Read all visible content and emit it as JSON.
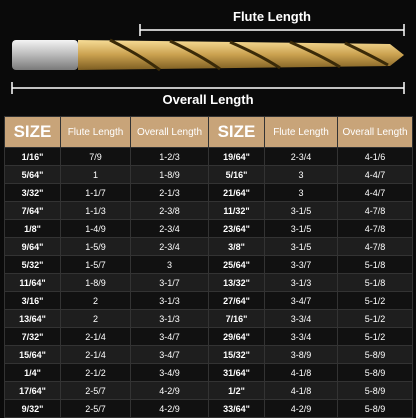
{
  "labels": {
    "flute_length": "Flute Length",
    "overall_length": "Overall Length"
  },
  "table": {
    "header": [
      "SIZE",
      "Flute Length",
      "Overall Length",
      "SIZE",
      "Flute Length",
      "Overall Length"
    ],
    "rows": [
      [
        "1/16\"",
        "7/9",
        "1-2/3",
        "19/64\"",
        "2-3/4",
        "4-1/6"
      ],
      [
        "5/64\"",
        "1",
        "1-8/9",
        "5/16\"",
        "3",
        "4-4/7"
      ],
      [
        "3/32\"",
        "1-1/7",
        "2-1/3",
        "21/64\"",
        "3",
        "4-4/7"
      ],
      [
        "7/64\"",
        "1-1/3",
        "2-3/8",
        "11/32\"",
        "3-1/5",
        "4-7/8"
      ],
      [
        "1/8\"",
        "1-4/9",
        "2-3/4",
        "23/64\"",
        "3-1/5",
        "4-7/8"
      ],
      [
        "9/64\"",
        "1-5/9",
        "2-3/4",
        "3/8\"",
        "3-1/5",
        "4-7/8"
      ],
      [
        "5/32\"",
        "1-5/7",
        "3",
        "25/64\"",
        "3-3/7",
        "5-1/8"
      ],
      [
        "11/64\"",
        "1-8/9",
        "3-1/7",
        "13/32\"",
        "3-1/3",
        "5-1/8"
      ],
      [
        "3/16\"",
        "2",
        "3-1/3",
        "27/64\"",
        "3-4/7",
        "5-1/2"
      ],
      [
        "13/64\"",
        "2",
        "3-1/3",
        "7/16\"",
        "3-3/4",
        "5-1/2"
      ],
      [
        "7/32\"",
        "2-1/4",
        "3-4/7",
        "29/64\"",
        "3-3/4",
        "5-1/2"
      ],
      [
        "15/64\"",
        "2-1/4",
        "3-4/7",
        "15/32\"",
        "3-8/9",
        "5-8/9"
      ],
      [
        "1/4\"",
        "2-1/2",
        "3-4/9",
        "31/64\"",
        "4-1/8",
        "5-8/9"
      ],
      [
        "17/64\"",
        "2-5/7",
        "4-2/9",
        "1/2\"",
        "4-1/8",
        "5-8/9"
      ],
      [
        "9/32\"",
        "2-5/7",
        "4-2/9",
        "33/64\"",
        "4-2/9",
        "5-8/9"
      ]
    ]
  }
}
